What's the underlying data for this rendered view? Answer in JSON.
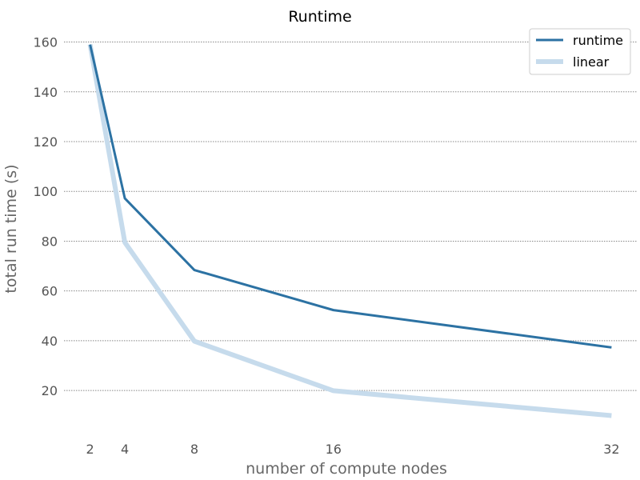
{
  "chart_data": {
    "type": "line",
    "title": "Runtime",
    "xlabel": "number of compute nodes",
    "ylabel": "total run time (s)",
    "xlim": [
      0.5,
      33.5
    ],
    "ylim": [
      3,
      165
    ],
    "x_ticks": [
      2,
      4,
      8,
      16,
      32
    ],
    "y_ticks": [
      20,
      40,
      60,
      80,
      100,
      120,
      140,
      160
    ],
    "grid": "horizontal",
    "legend_position": "top-right",
    "series": [
      {
        "name": "runtime",
        "color": "#2c72a3",
        "x": [
          2,
          4,
          8,
          16,
          32
        ],
        "y": [
          159,
          97.2,
          68.4,
          52.3,
          37.3
        ]
      },
      {
        "name": "linear",
        "color": "#c6dbec",
        "x": [
          2,
          4,
          8,
          16,
          32
        ],
        "y": [
          159,
          79.5,
          39.8,
          19.9,
          9.9
        ]
      }
    ]
  }
}
